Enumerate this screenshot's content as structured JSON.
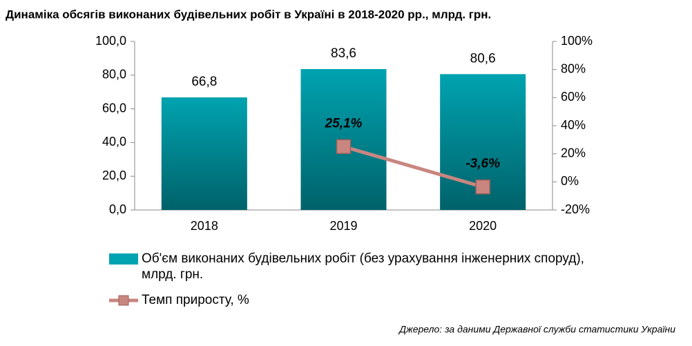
{
  "chart_data": {
    "type": "bar",
    "title": "Динаміка обсягів виконаних будівельних робіт в Україні в 2018-2020 рр., млрд. грн.",
    "source": "Джерело: за даними Державної служби статистики України",
    "categories": [
      "2018",
      "2019",
      "2020"
    ],
    "series": [
      {
        "name": "Об'єм виконаних будівельних робіт (без урахування інженерних споруд), млрд. грн.",
        "type": "bar",
        "color": "#00a3b0",
        "values": [
          66.8,
          83.6,
          80.6
        ],
        "value_labels": [
          "66,8",
          "83,6",
          "80,6"
        ]
      },
      {
        "name": "Темп приросту, %",
        "type": "line",
        "axis": "y2",
        "color": "#c98680",
        "values": [
          null,
          25.1,
          -3.6
        ],
        "value_labels": [
          null,
          "25,1%",
          "-3,6%"
        ]
      }
    ],
    "ylim": [
      0,
      100
    ],
    "yticks": [
      {
        "value": 0,
        "label": "0,0"
      },
      {
        "value": 20,
        "label": "20,0"
      },
      {
        "value": 40,
        "label": "40,0"
      },
      {
        "value": 60,
        "label": "60,0"
      },
      {
        "value": 80,
        "label": "80,0"
      },
      {
        "value": 100,
        "label": "100,0"
      }
    ],
    "y2lim": [
      -20,
      100
    ],
    "y2ticks": [
      {
        "value": -20,
        "label": "-20%"
      },
      {
        "value": 0,
        "label": "0%"
      },
      {
        "value": 20,
        "label": "20%"
      },
      {
        "value": 40,
        "label": "40%"
      },
      {
        "value": 60,
        "label": "60%"
      },
      {
        "value": 80,
        "label": "80%"
      },
      {
        "value": 100,
        "label": "100%"
      }
    ]
  }
}
